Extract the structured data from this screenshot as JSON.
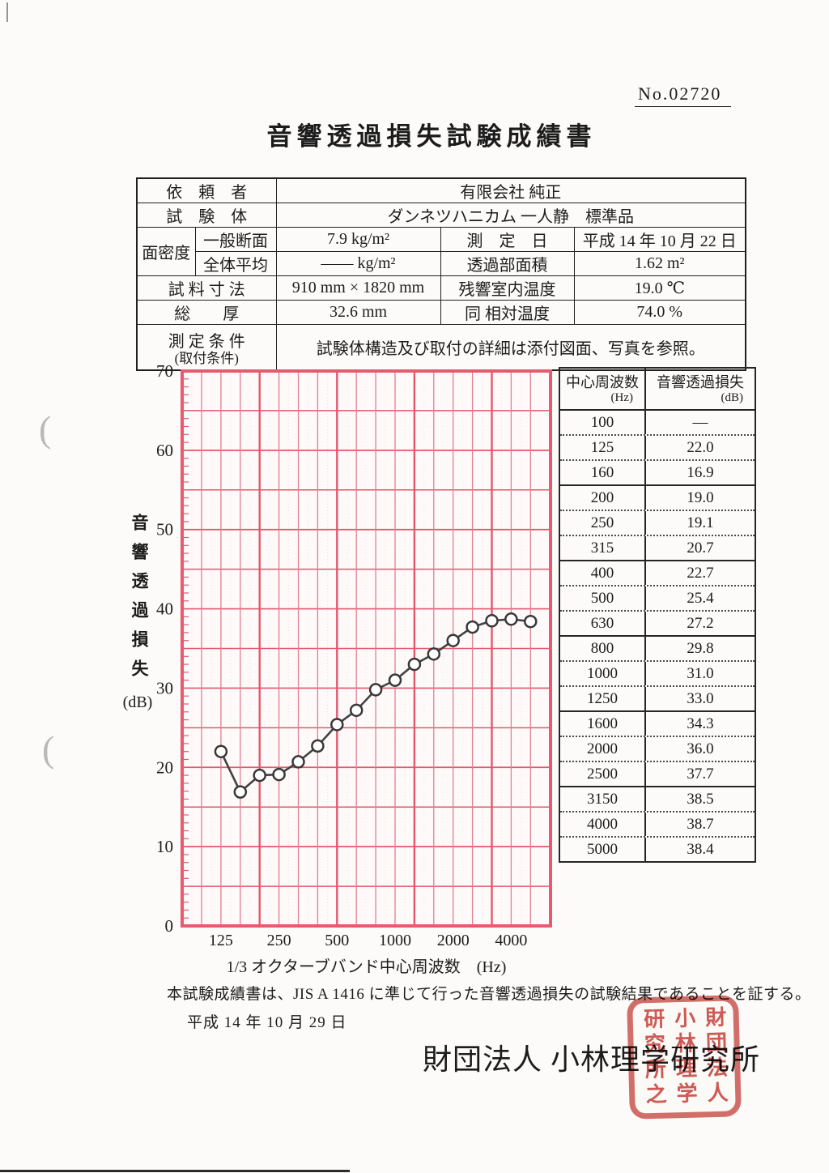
{
  "doc_number": "No.02720",
  "title": "音響透過損失試験成績書",
  "info_table": {
    "client_label": "依　頼　者",
    "client_value": "有限会社 純正",
    "specimen_label": "試　験　体",
    "specimen_value": "ダンネツハニカム 一人静　標準品",
    "density_label": "面密度",
    "density_general_label": "一般断面",
    "density_general_value": "7.9 kg/m²",
    "density_average_label": "全体平均",
    "density_average_value": "―― kg/m²",
    "measurement_date_label": "測　定　日",
    "measurement_date_value": "平成 14 年 10 月 22 日",
    "area_label": "透過部面積",
    "area_value": "1.62 m²",
    "size_label": "試 料 寸 法",
    "size_value": "910 mm × 1820 mm",
    "temperature_label": "残響室内温度",
    "temperature_value": "19.0 ℃",
    "thickness_label": "総　　厚",
    "thickness_value": "32.6 mm",
    "humidity_label": "同 相対温度",
    "humidity_value": "74.0 %",
    "conditions_label_line1": "測 定 条 件",
    "conditions_label_line2": "(取付条件)",
    "conditions_value": "試験体構造及び取付の詳細は添付図面、写真を参照。"
  },
  "chart_data": {
    "type": "line",
    "title": "",
    "xlabel": "1/3 オクターブバンド中心周波数　(Hz)",
    "ylabel": "音響透過損失",
    "ylabel_unit": "(dB)",
    "ylim": [
      0,
      70
    ],
    "ytick_step": 10,
    "grid": "on",
    "x_bands": [
      100,
      125,
      160,
      200,
      250,
      315,
      400,
      500,
      630,
      800,
      1000,
      1250,
      1600,
      2000,
      2500,
      3150,
      4000,
      5000
    ],
    "xtick_labels": [
      "125",
      "250",
      "500",
      "1000",
      "2000",
      "4000"
    ],
    "xtick_band_indices": [
      1,
      4,
      7,
      10,
      13,
      16
    ],
    "series": [
      {
        "name": "音響透過損失",
        "x": [
          125,
          160,
          200,
          250,
          315,
          400,
          500,
          630,
          800,
          1000,
          1250,
          1600,
          2000,
          2500,
          3150,
          4000,
          5000
        ],
        "values": [
          22.0,
          16.9,
          19.0,
          19.1,
          20.7,
          22.7,
          25.4,
          27.2,
          29.8,
          31.0,
          33.0,
          34.3,
          36.0,
          37.7,
          38.5,
          38.7,
          38.4
        ]
      }
    ]
  },
  "result_table": {
    "freq_header": "中心周波数",
    "freq_unit": "(Hz)",
    "loss_header": "音響透過損失",
    "loss_unit": "(dB)",
    "rows": [
      {
        "freq": "100",
        "loss": "—"
      },
      {
        "freq": "125",
        "loss": "22.0"
      },
      {
        "freq": "160",
        "loss": "16.9"
      },
      {
        "freq": "200",
        "loss": "19.0"
      },
      {
        "freq": "250",
        "loss": "19.1"
      },
      {
        "freq": "315",
        "loss": "20.7"
      },
      {
        "freq": "400",
        "loss": "22.7"
      },
      {
        "freq": "500",
        "loss": "25.4"
      },
      {
        "freq": "630",
        "loss": "27.2"
      },
      {
        "freq": "800",
        "loss": "29.8"
      },
      {
        "freq": "1000",
        "loss": "31.0"
      },
      {
        "freq": "1250",
        "loss": "33.0"
      },
      {
        "freq": "1600",
        "loss": "34.3"
      },
      {
        "freq": "2000",
        "loss": "36.0"
      },
      {
        "freq": "2500",
        "loss": "37.7"
      },
      {
        "freq": "3150",
        "loss": "38.5"
      },
      {
        "freq": "4000",
        "loss": "38.7"
      },
      {
        "freq": "5000",
        "loss": "38.4"
      }
    ]
  },
  "footer": {
    "certification": "本試験成績書は、JIS A 1416 に準じて行った音響透過損失の試験結果であることを証する。",
    "date": "平成 14 年 10 月 29 日",
    "organization": "財団法人 小林理学研究所",
    "seal_columns": [
      "財団法人",
      "小林理学",
      "研究所之"
    ]
  },
  "colors": {
    "grid_major_red": "#e4566b",
    "grid_minor_red": "#e17f91",
    "frame_red": "#e75a6f",
    "paper_tint": "#fefafa",
    "texture_pink": "#ddaab8",
    "line_dark": "#424242",
    "marker_stroke": "#383838",
    "seal_red": "#c7403a",
    "text_black": "#1c1c1c"
  }
}
